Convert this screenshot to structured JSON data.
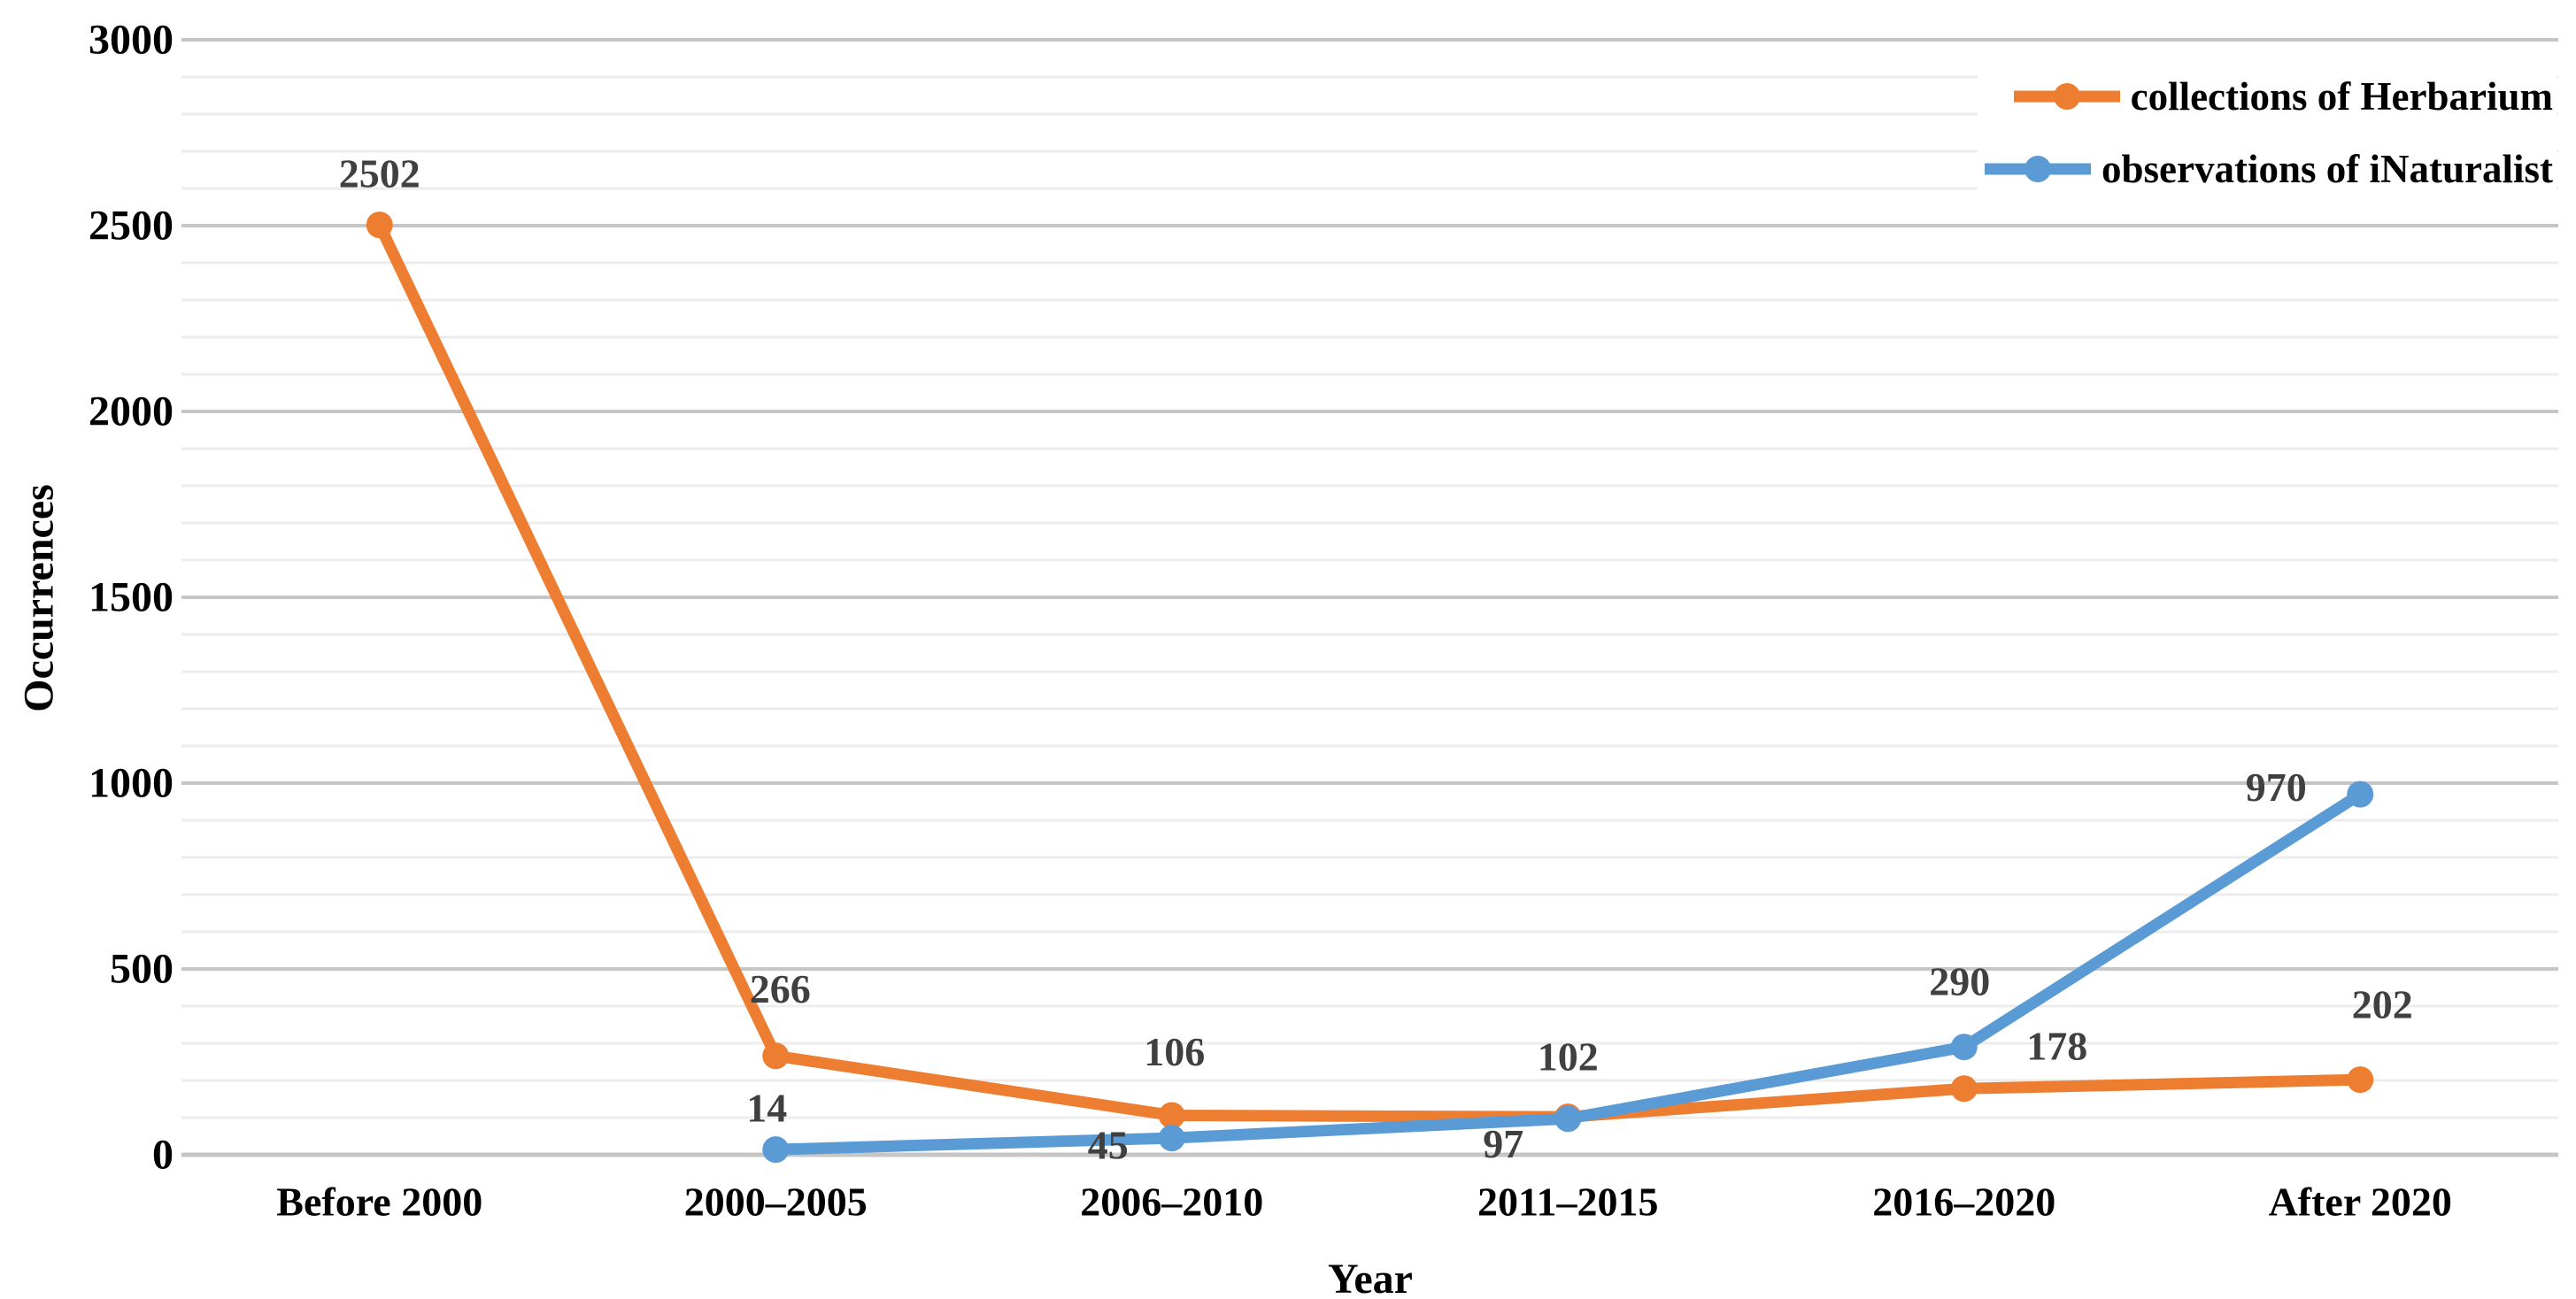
{
  "chart_data": {
    "type": "line",
    "title": "",
    "xlabel": "Year",
    "ylabel": "Occurrences",
    "categories": [
      "Before 2000",
      "2000–2005",
      "2006–2010",
      "2011–2015",
      "2016–2020",
      "After 2020"
    ],
    "series": [
      {
        "name": "collections of Herbarium",
        "color": "#ED7D31",
        "values": [
          2502,
          266,
          106,
          102,
          178,
          202
        ]
      },
      {
        "name": "observations of iNaturalist",
        "color": "#5B9BD5",
        "values": [
          null,
          14,
          45,
          97,
          290,
          970
        ]
      }
    ],
    "ylim": [
      0,
      3000
    ],
    "ytick_step": 500,
    "yminor_step": 100,
    "grid": true,
    "legend_position": "top-right",
    "data_labels": true,
    "label_color": "#404040",
    "axis_text_color": "#000000",
    "major_grid_color": "#c6c6c6",
    "minor_grid_color": "#ececec",
    "background_color": "#ffffff"
  }
}
